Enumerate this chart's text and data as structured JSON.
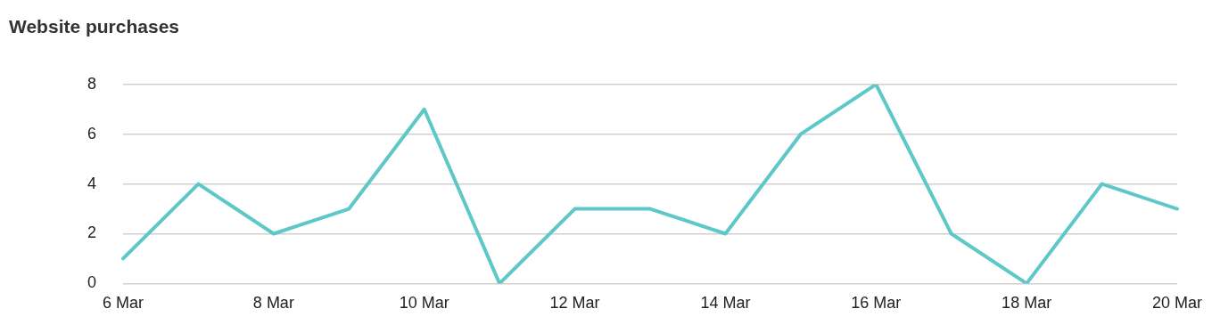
{
  "chart_data": {
    "type": "line",
    "title": "Website purchases",
    "categories": [
      "6 Mar",
      null,
      "8 Mar",
      null,
      "10 Mar",
      null,
      "12 Mar",
      null,
      "14 Mar",
      null,
      "16 Mar",
      null,
      "18 Mar",
      null,
      "20 Mar"
    ],
    "series": [
      {
        "color": "#5ec8c8",
        "values": [
          1,
          4,
          2,
          3,
          7,
          0,
          3,
          3,
          2,
          6,
          8,
          2,
          0,
          4,
          3
        ]
      }
    ],
    "ylim": [
      0,
      8
    ],
    "yticks": [
      0,
      2,
      4,
      6,
      8
    ],
    "grid": "y",
    "legend": false,
    "marker": "none",
    "line_style": "solid"
  }
}
